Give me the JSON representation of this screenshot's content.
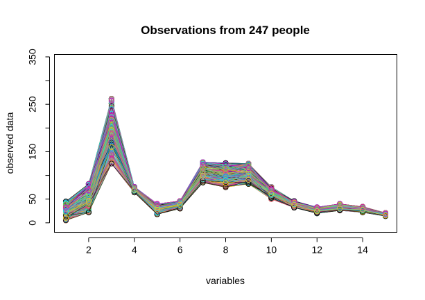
{
  "chart_data": {
    "type": "line",
    "title": "Observations from 247 people",
    "xlabel": "variables",
    "ylabel": "observed data",
    "xlim": [
      0.5,
      15.5
    ],
    "ylim": [
      -20,
      355
    ],
    "x_ticks": [
      2,
      4,
      6,
      8,
      10,
      12,
      14
    ],
    "x_tick_labels": [
      "2",
      "4",
      "6",
      "8",
      "10",
      "12",
      "14"
    ],
    "y_ticks": [
      0,
      50,
      150,
      250,
      350
    ],
    "y_tick_labels": [
      "0",
      "50",
      "150",
      "250",
      "350"
    ],
    "y_minor_ticks": [
      100,
      200,
      300
    ],
    "x": [
      1,
      2,
      3,
      4,
      5,
      6,
      7,
      8,
      9,
      10,
      11,
      12,
      13,
      14,
      15
    ],
    "point_style": "open-circle-with-line",
    "grid": false,
    "legend": "none",
    "palette": [
      "#000000",
      "#DF536B",
      "#61D04F",
      "#2297E6",
      "#28E2E5",
      "#CD0BBC",
      "#F5C710",
      "#9E9E9E"
    ],
    "n_series": 247,
    "series_summary": {
      "mean": [
        20,
        50,
        180,
        70,
        28,
        38,
        105,
        98,
        100,
        62,
        38,
        28,
        33,
        28,
        17
      ],
      "lower": [
        5,
        22,
        125,
        64,
        18,
        30,
        85,
        75,
        82,
        50,
        32,
        20,
        26,
        22,
        14
      ],
      "upper": [
        45,
        82,
        262,
        76,
        40,
        46,
        128,
        126,
        125,
        76,
        46,
        33,
        40,
        34,
        21
      ]
    },
    "series": [
      {
        "values": [
          12,
          65,
          240,
          72,
          35,
          42,
          120,
          110,
          115,
          70,
          45,
          30,
          38,
          32,
          18
        ]
      },
      {
        "values": [
          30,
          40,
          150,
          68,
          22,
          35,
          95,
          90,
          92,
          55,
          35,
          25,
          30,
          25,
          15
        ]
      },
      {
        "values": [
          8,
          75,
          200,
          74,
          30,
          40,
          110,
          100,
          105,
          65,
          40,
          28,
          35,
          30,
          17
        ]
      },
      {
        "values": [
          40,
          30,
          130,
          66,
          20,
          33,
          90,
          80,
          88,
          52,
          33,
          22,
          28,
          24,
          15
        ]
      },
      {
        "values": [
          20,
          55,
          180,
          70,
          28,
          38,
          100,
          95,
          100,
          60,
          38,
          27,
          33,
          28,
          16
        ]
      },
      {
        "values": [
          25,
          45,
          160,
          69,
          25,
          36,
          98,
          92,
          96,
          58,
          37,
          26,
          32,
          27,
          16
        ]
      },
      {
        "values": [
          15,
          60,
          220,
          73,
          32,
          41,
          115,
          105,
          110,
          68,
          42,
          29,
          36,
          31,
          18
        ]
      },
      {
        "values": [
          35,
          35,
          140,
          67,
          21,
          34,
          92,
          85,
          90,
          54,
          34,
          23,
          29,
          25,
          15
        ]
      }
    ]
  }
}
